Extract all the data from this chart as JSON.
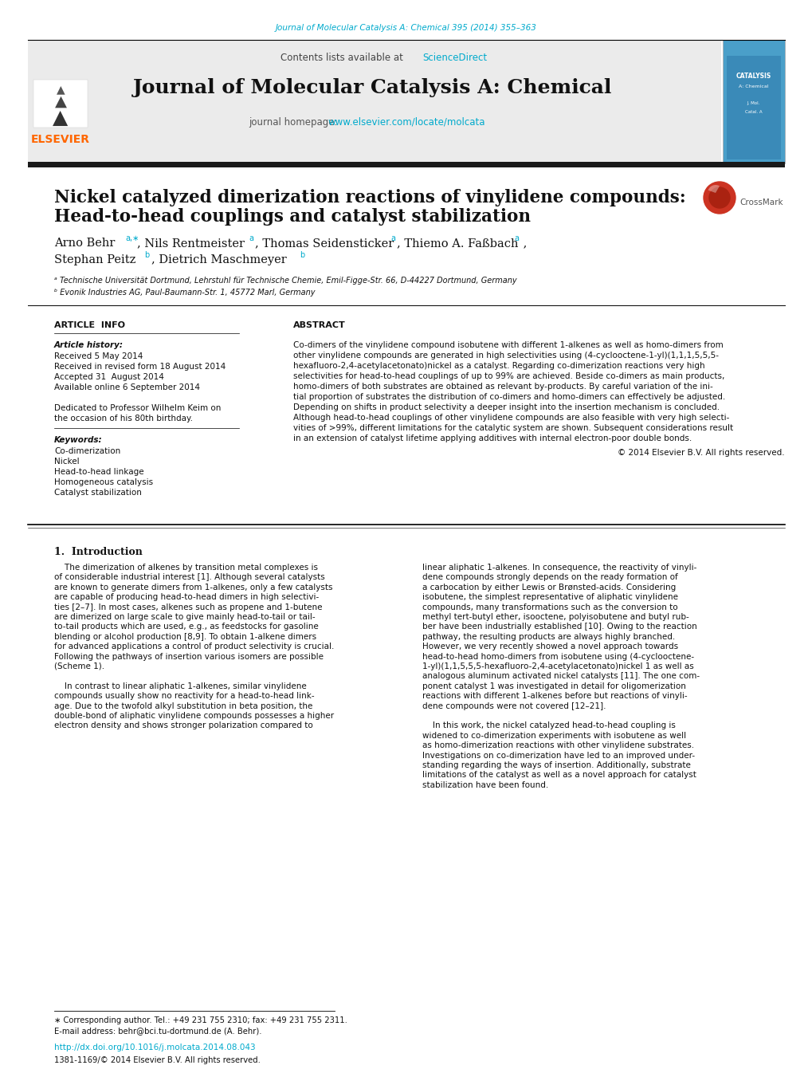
{
  "fig_width": 10.2,
  "fig_height": 13.51,
  "bg_color": "#ffffff",
  "journal_ref_text": "Journal of Molecular Catalysis A: Chemical 395 (2014) 355–363",
  "journal_ref_color": "#00aacc",
  "header_bg": "#ebebeb",
  "sciencedirect_color": "#00aacc",
  "journal_title": "Journal of Molecular Catalysis A: Chemical",
  "journal_homepage_label": "journal homepage:",
  "journal_url": "www.elsevier.com/locate/molcata",
  "url_color": "#00aacc",
  "paper_title_line1": "Nickel catalyzed dimerization reactions of vinylidene compounds:",
  "paper_title_line2": "Head-to-head couplings and catalyst stabilization",
  "affil_a": "ᵃ Technische Universität Dortmund, Lehrstuhl für Technische Chemie, Emil-Figge-Str. 66, D-44227 Dortmund, Germany",
  "affil_b": "ᵇ Evonik Industries AG, Paul-Baumann-Str. 1, 45772 Marl, Germany",
  "section_article_info": "ARTICLE  INFO",
  "section_abstract": "ABSTRACT",
  "article_history_label": "Article history:",
  "received_1": "Received 5 May 2014",
  "received_2": "Received in revised form 18 August 2014",
  "accepted": "Accepted 31  August 2014",
  "available": "Available online 6 September 2014",
  "dedicated_1": "Dedicated to Professor Wilhelm Keim on",
  "dedicated_2": "the occasion of his 80th birthday.",
  "keywords_label": "Keywords:",
  "keywords": [
    "Co-dimerization",
    "Nickel",
    "Head-to-head linkage",
    "Homogeneous catalysis",
    "Catalyst stabilization"
  ],
  "copyright": "© 2014 Elsevier B.V. All rights reserved.",
  "intro_heading": "1.  Introduction",
  "footer_line1": "∗ Corresponding author. Tel.: +49 231 755 2310; fax: +49 231 755 2311.",
  "footer_line2": "E-mail address: behr@bci.tu-dortmund.de (A. Behr).",
  "footer_doi": "http://dx.doi.org/10.1016/j.molcata.2014.08.043",
  "footer_issn": "1381-1169/© 2014 Elsevier B.V. All rights reserved.",
  "elsevier_color": "#ff6600",
  "link_color": "#00aacc",
  "abstract_lines": [
    "Co-dimers of the vinylidene compound isobutene with different 1-alkenes as well as homo-dimers from",
    "other vinylidene compounds are generated in high selectivities using (4-cyclooctene-1-yl)(1,1,1,5,5,5-",
    "hexafluoro-2,4-acetylacetonato)nickel as a catalyst. Regarding co-dimerization reactions very high",
    "selectivities for head-to-head couplings of up to 99% are achieved. Beside co-dimers as main products,",
    "homo-dimers of both substrates are obtained as relevant by-products. By careful variation of the ini-",
    "tial proportion of substrates the distribution of co-dimers and homo-dimers can effectively be adjusted.",
    "Depending on shifts in product selectivity a deeper insight into the insertion mechanism is concluded.",
    "Although head-to-head couplings of other vinylidene compounds are also feasible with very high selecti-",
    "vities of >99%, different limitations for the catalytic system are shown. Subsequent considerations result",
    "in an extension of catalyst lifetime applying additives with internal electron-poor double bonds."
  ],
  "intro_col1_lines": [
    "    The dimerization of alkenes by transition metal complexes is",
    "of considerable industrial interest [1]. Although several catalysts",
    "are known to generate dimers from 1-alkenes, only a few catalysts",
    "are capable of producing head-to-head dimers in high selectivi-",
    "ties [2–7]. In most cases, alkenes such as propene and 1-butene",
    "are dimerized on large scale to give mainly head-to-tail or tail-",
    "to-tail products which are used, e.g., as feedstocks for gasoline",
    "blending or alcohol production [8,9]. To obtain 1-alkene dimers",
    "for advanced applications a control of product selectivity is crucial.",
    "Following the pathways of insertion various isomers are possible",
    "(Scheme 1).",
    "",
    "    In contrast to linear aliphatic 1-alkenes, similar vinylidene",
    "compounds usually show no reactivity for a head-to-head link-",
    "age. Due to the twofold alkyl substitution in beta position, the",
    "double-bond of aliphatic vinylidene compounds possesses a higher",
    "electron density and shows stronger polarization compared to"
  ],
  "intro_col2_lines": [
    "linear aliphatic 1-alkenes. In consequence, the reactivity of vinyli-",
    "dene compounds strongly depends on the ready formation of",
    "a carbocation by either Lewis or Brønsted-acids. Considering",
    "isobutene, the simplest representative of aliphatic vinylidene",
    "compounds, many transformations such as the conversion to",
    "methyl tert-butyl ether, isooctene, polyisobutene and butyl rub-",
    "ber have been industrially established [10]. Owing to the reaction",
    "pathway, the resulting products are always highly branched.",
    "However, we very recently showed a novel approach towards",
    "head-to-head homo-dimers from isobutene using (4-cyclooctene-",
    "1-yl)(1,1,5,5,5-hexafluoro-2,4-acetylacetonato)nickel 1 as well as",
    "analogous aluminum activated nickel catalysts [11]. The one com-",
    "ponent catalyst 1 was investigated in detail for oligomerization",
    "reactions with different 1-alkenes before but reactions of vinyli-",
    "dene compounds were not covered [12–21].",
    "",
    "    In this work, the nickel catalyzed head-to-head coupling is",
    "widened to co-dimerization experiments with isobutene as well",
    "as homo-dimerization reactions with other vinylidene substrates.",
    "Investigations on co-dimerization have led to an improved under-",
    "standing regarding the ways of insertion. Additionally, substrate",
    "limitations of the catalyst as well as a novel approach for catalyst",
    "stabilization have been found."
  ]
}
